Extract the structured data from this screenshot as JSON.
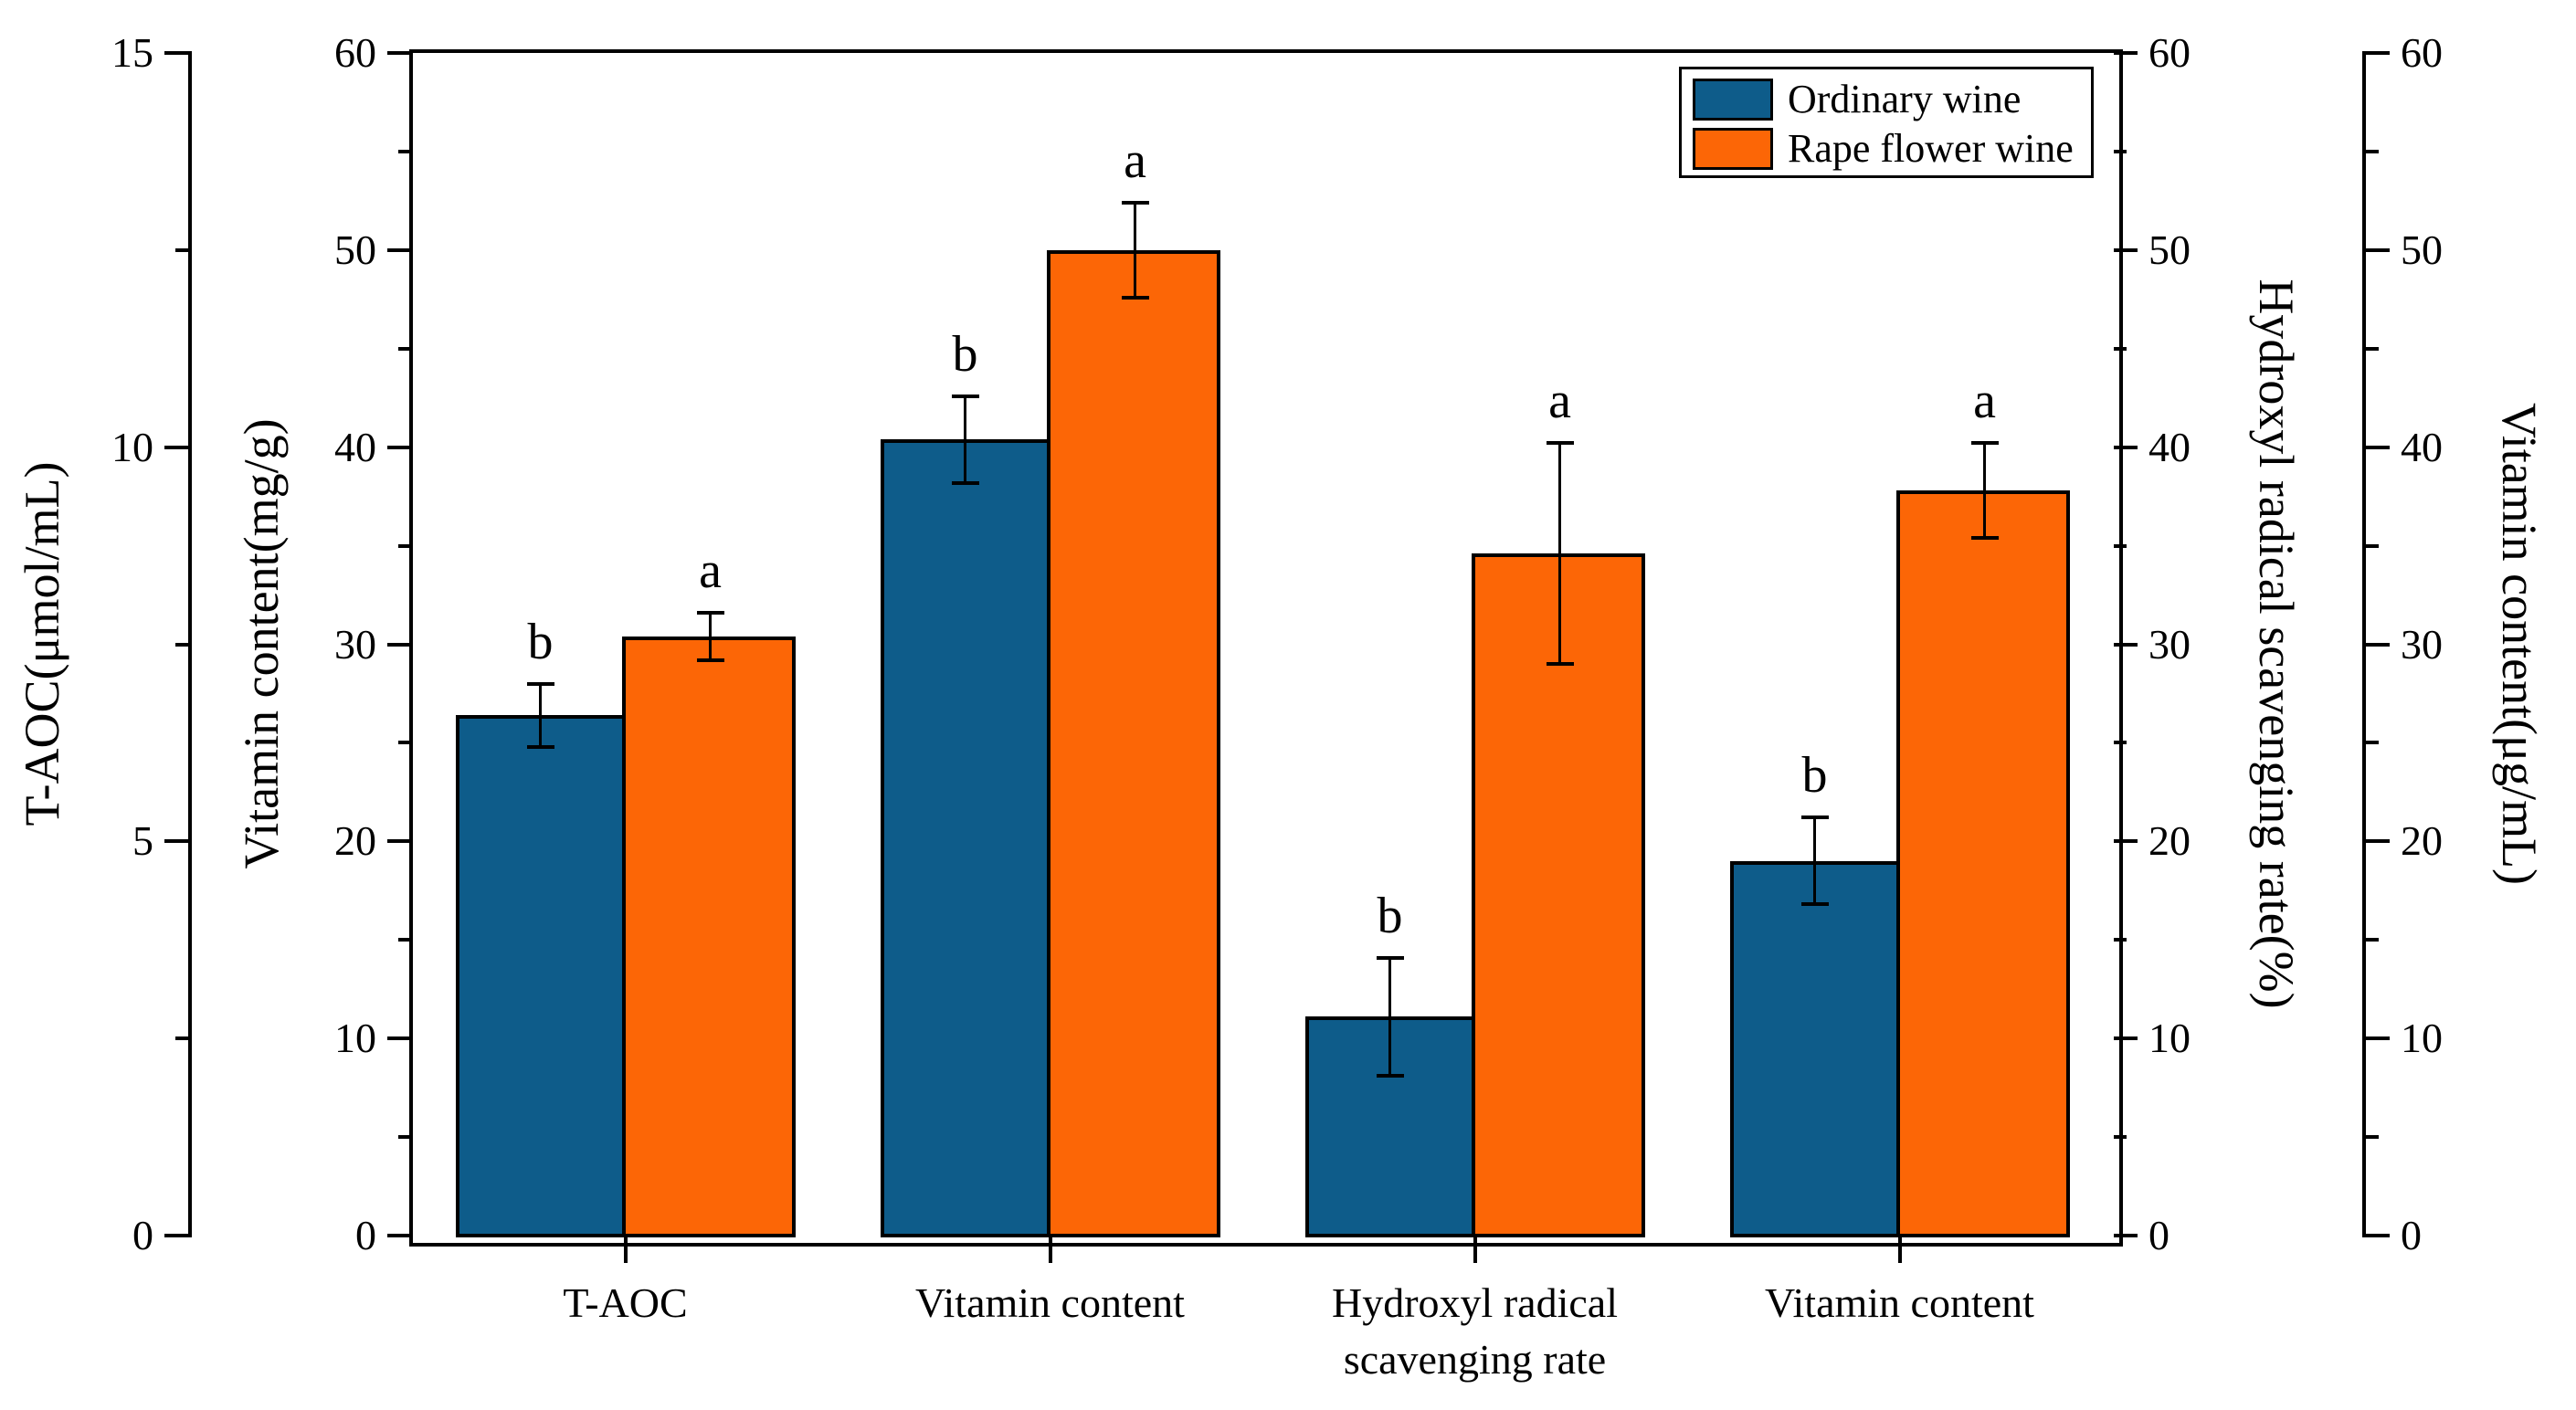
{
  "chart_data": {
    "type": "bar",
    "title": "",
    "grid": false,
    "legend_position": "top-right",
    "plot_ylim": [
      0,
      60
    ],
    "categories": [
      "T-AOC",
      "Vitamin content",
      "Hydroxyl radical\nscavenging rate",
      "Vitamin content"
    ],
    "group_axis_units": [
      "μmol/mL",
      "mg/g",
      "%",
      "μg/mL"
    ],
    "group_plot_scale": [
      4,
      1,
      1,
      1
    ],
    "series": [
      {
        "name": "Ordinary wine",
        "color": "#0E5C8A",
        "values_by_axis": [
          6.6,
          40.4,
          11.1,
          19.0
        ],
        "errors_by_axis": [
          0.4,
          2.2,
          3.0,
          2.2
        ],
        "sig_letters": [
          "b",
          "b",
          "b",
          "b"
        ]
      },
      {
        "name": "Rape flower wine",
        "color": "#FC6606",
        "values_by_axis": [
          7.6,
          50.0,
          34.6,
          37.8
        ],
        "errors_by_axis": [
          0.3,
          2.4,
          5.6,
          2.4
        ],
        "sig_letters": [
          "a",
          "a",
          "a",
          "a"
        ]
      }
    ],
    "axes": [
      {
        "id": "taoc",
        "side": "left-outer",
        "title": "T-AOC(μmol/mL)",
        "min": 0,
        "max": 15,
        "major_ticks": [
          0,
          5,
          10,
          15
        ],
        "minor_ticks": [
          2.5,
          7.5,
          12.5
        ]
      },
      {
        "id": "vitamin_mg",
        "side": "left-inner",
        "title": "Vitamin content(mg/g)",
        "min": 0,
        "max": 60,
        "major_ticks": [
          0,
          10,
          20,
          30,
          40,
          50,
          60
        ],
        "minor_ticks": [
          5,
          15,
          25,
          35,
          45,
          55
        ]
      },
      {
        "id": "hydroxyl",
        "side": "right-inner",
        "title": "Hydroxyl radical scavenging rate(%)",
        "min": 0,
        "max": 60,
        "major_ticks": [
          0,
          10,
          20,
          30,
          40,
          50,
          60
        ],
        "minor_ticks": [
          5,
          15,
          25,
          35,
          45,
          55
        ]
      },
      {
        "id": "vitamin_ug",
        "side": "right-outer",
        "title": "Vitamin content(μg/mL)",
        "min": 0,
        "max": 60,
        "major_ticks": [
          0,
          10,
          20,
          30,
          40,
          50,
          60
        ],
        "minor_ticks": [
          5,
          15,
          25,
          35,
          45,
          55
        ]
      }
    ]
  }
}
